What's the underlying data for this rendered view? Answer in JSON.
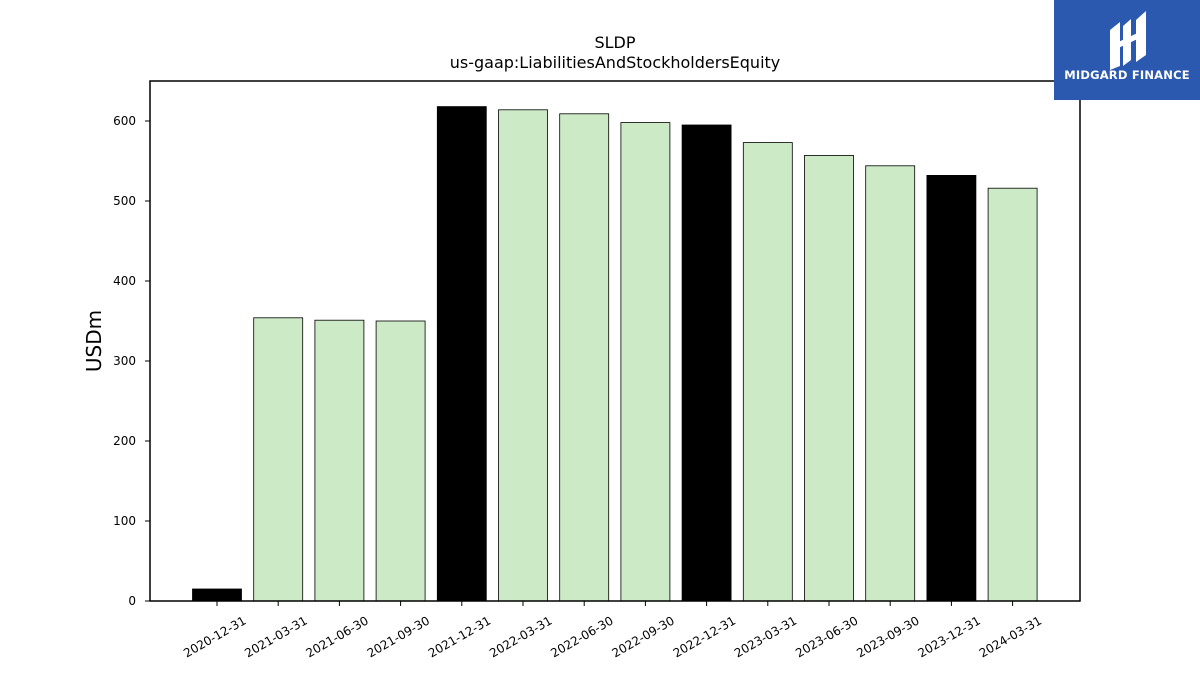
{
  "logo": {
    "text": "MIDGARD FINANCE"
  },
  "colors": {
    "highlight": "#000000",
    "normal": "#cdeac7",
    "edge": "#000000"
  },
  "chart_data": {
    "type": "bar",
    "title": "SLDP",
    "subtitle": "us-gaap:LiabilitiesAndStockholdersEquity",
    "xlabel": "",
    "ylabel": "USDm",
    "ylim": [
      0,
      650
    ],
    "yticks": [
      0,
      100,
      200,
      300,
      400,
      500,
      600
    ],
    "grid": false,
    "categories": [
      "2020-12-31",
      "2021-03-31",
      "2021-06-30",
      "2021-09-30",
      "2021-12-31",
      "2022-03-31",
      "2022-06-30",
      "2022-09-30",
      "2022-12-31",
      "2023-03-31",
      "2023-06-30",
      "2023-09-30",
      "2023-12-31",
      "2024-03-31"
    ],
    "values": [
      15,
      354,
      351,
      350,
      618,
      614,
      609,
      598,
      595,
      573,
      557,
      544,
      532,
      516
    ],
    "highlight": [
      true,
      false,
      false,
      false,
      true,
      false,
      false,
      false,
      true,
      false,
      false,
      false,
      true,
      false
    ]
  }
}
